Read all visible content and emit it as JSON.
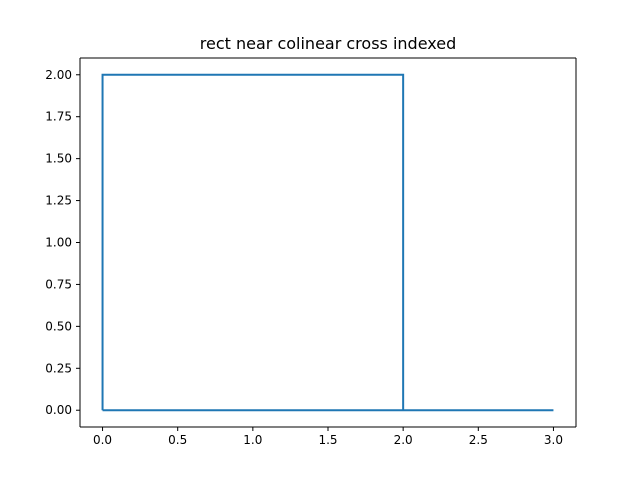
{
  "chart_data": {
    "type": "line",
    "title": "rect near colinear cross indexed",
    "xlabel": "",
    "ylabel": "",
    "xlim": [
      -0.15,
      3.15
    ],
    "ylim": [
      -0.1,
      2.1
    ],
    "x_ticks": [
      0.0,
      0.5,
      1.0,
      1.5,
      2.0,
      2.5,
      3.0
    ],
    "x_tick_labels": [
      "0.0",
      "0.5",
      "1.0",
      "1.5",
      "2.0",
      "2.5",
      "3.0"
    ],
    "y_ticks": [
      0.0,
      0.25,
      0.5,
      0.75,
      1.0,
      1.25,
      1.5,
      1.75,
      2.0
    ],
    "y_tick_labels": [
      "0.00",
      "0.25",
      "0.50",
      "0.75",
      "1.00",
      "1.25",
      "1.50",
      "1.75",
      "2.00"
    ],
    "grid": false,
    "legend": "none",
    "series": [
      {
        "color": "#1f77b4",
        "x": [
          0,
          0,
          2,
          2,
          0,
          2,
          3,
          2
        ],
        "y": [
          0,
          2,
          2,
          0,
          0,
          0,
          0,
          0
        ]
      }
    ]
  }
}
